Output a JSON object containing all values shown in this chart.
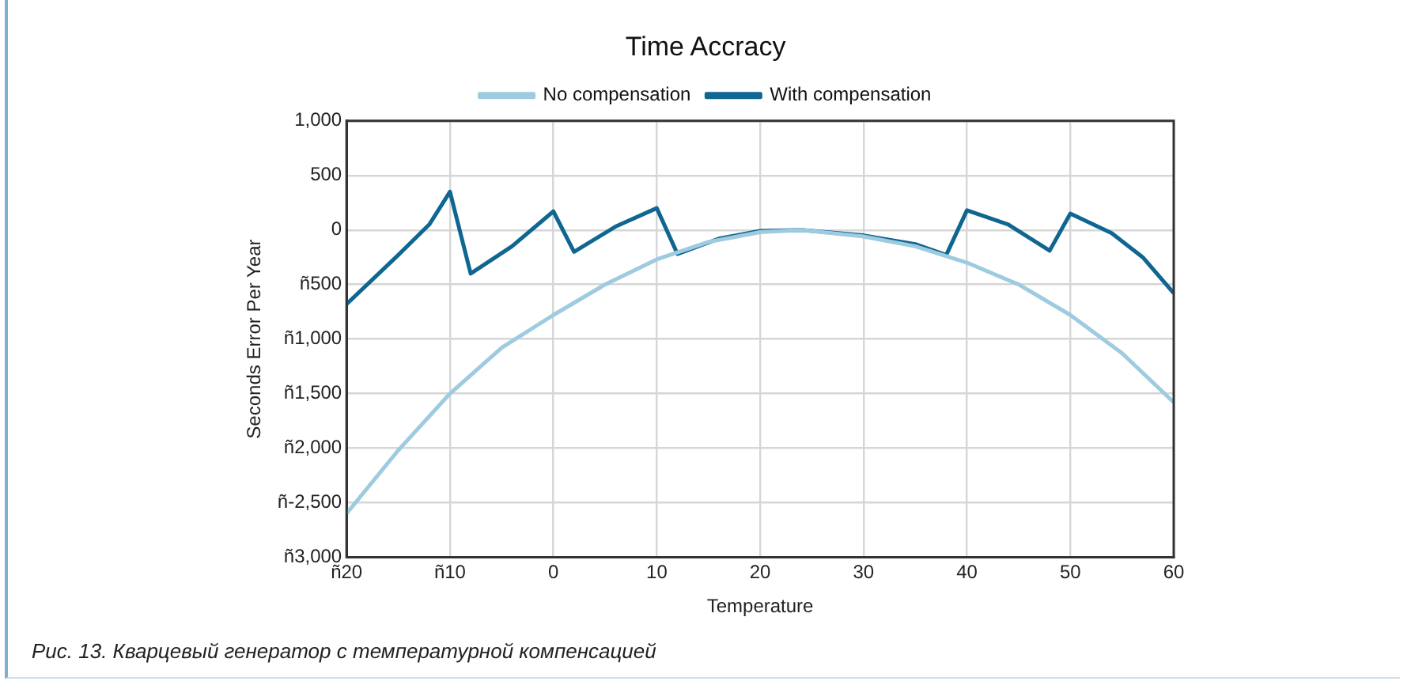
{
  "chart_data": {
    "type": "line",
    "title": "Time Accracy",
    "xlabel": "Temperature",
    "ylabel": "Seconds Error Per Year",
    "xlim": [
      -20,
      60
    ],
    "xticks": [
      {
        "value": -20,
        "label": "ñ20"
      },
      {
        "value": -10,
        "label": "ñ10"
      },
      0,
      10,
      20,
      30,
      40,
      50,
      60
    ],
    "ylim": [
      -3000,
      1000
    ],
    "yticks": [
      {
        "value": -3000,
        "label": "ñ3,000"
      },
      {
        "value": -2500,
        "label": "ñ-2,500"
      },
      {
        "value": -2000,
        "label": "ñ2,000"
      },
      {
        "value": -1500,
        "label": "ñ1,500"
      },
      {
        "value": -1000,
        "label": "ñ1,000"
      },
      {
        "value": -500,
        "label": "ñ500"
      },
      0,
      {
        "value": 500,
        "label": "500"
      },
      {
        "value": 1000,
        "label": "1,000"
      }
    ],
    "grid": true,
    "legend": "top",
    "marker": "none",
    "line_style": "solid",
    "series": [
      {
        "name": "No compensation",
        "color": "#9ecbe0",
        "x": [
          -20,
          -15,
          -10,
          -5,
          0,
          5,
          10,
          15,
          20,
          24,
          30,
          35,
          40,
          45,
          50,
          55,
          60
        ],
        "values": [
          -2600,
          -2020,
          -1500,
          -1080,
          -780,
          -500,
          -270,
          -110,
          -20,
          0,
          -60,
          -150,
          -300,
          -500,
          -780,
          -1130,
          -1580
        ]
      },
      {
        "name": "With compensation",
        "color": "#0f6690",
        "x": [
          -20,
          -15,
          -12,
          -10,
          -8,
          -4,
          0,
          2,
          6,
          10,
          12,
          16,
          20,
          24,
          30,
          35,
          38,
          40,
          44,
          48,
          50,
          54,
          57,
          60
        ],
        "values": [
          -680,
          -230,
          50,
          350,
          -400,
          -150,
          170,
          -200,
          30,
          200,
          -220,
          -80,
          -10,
          0,
          -50,
          -130,
          -230,
          180,
          50,
          -190,
          150,
          -30,
          -250,
          -580
        ]
      }
    ],
    "annotations": [
      "Рис. 13. Кварцевый генератор с температурной компенсацией"
    ]
  }
}
